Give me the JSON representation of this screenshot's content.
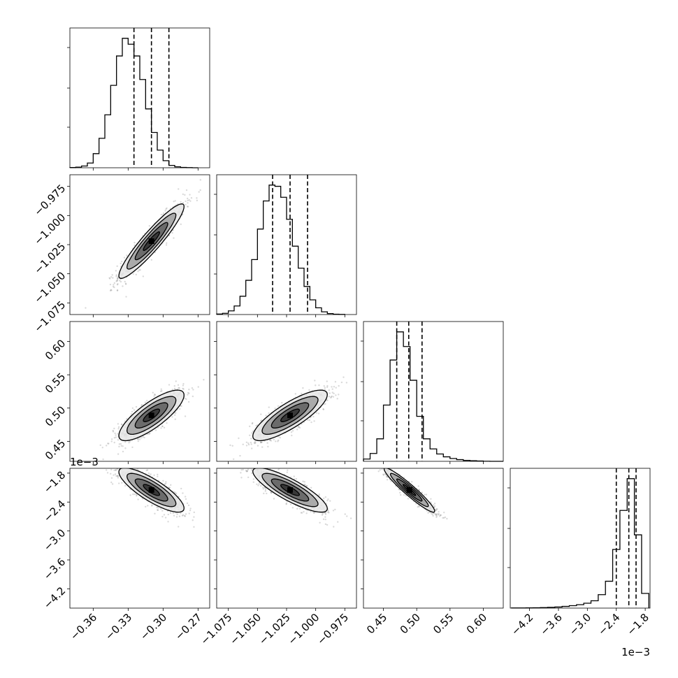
{
  "chart_data": {
    "type": "corner",
    "parameters": [
      {
        "range": [
          -0.38,
          -0.26
        ],
        "ticks": [
          -0.36,
          -0.33,
          -0.3,
          -0.27
        ],
        "tick_labels": [
          "−0.36",
          "−0.33",
          "−0.30",
          "−0.27"
        ],
        "mean": -0.31,
        "sd": 0.014,
        "quantiles": [
          -0.325,
          -0.31,
          -0.295
        ]
      },
      {
        "range": [
          -1.085,
          -0.965
        ],
        "ticks": [
          -1.075,
          -1.05,
          -1.025,
          -1.0,
          -0.975
        ],
        "tick_labels": [
          "−1.075",
          "−1.050",
          "−1.025",
          "−1.000",
          "−0.975"
        ],
        "mean": -1.022,
        "sd": 0.016,
        "quantiles": [
          -1.037,
          -1.022,
          -1.007
        ]
      },
      {
        "range": [
          0.42,
          0.63
        ],
        "ticks": [
          0.45,
          0.5,
          0.55,
          0.6
        ],
        "tick_labels": [
          "0.45",
          "0.50",
          "0.55",
          "0.60"
        ],
        "mean": 0.489,
        "sd": 0.019,
        "quantiles": [
          0.47,
          0.488,
          0.508
        ]
      },
      {
        "range": [
          -4.6,
          -1.7
        ],
        "ticks": [
          -4.2,
          -3.6,
          -3.0,
          -2.4,
          -1.8
        ],
        "tick_labels": [
          "−4.2",
          "−3.6",
          "−3.0",
          "−2.4",
          "−1.8"
        ],
        "offset_label": "1e−3",
        "mean": -2.15,
        "sd": 0.23,
        "quantiles": [
          -2.4,
          -2.14,
          -1.99
        ]
      }
    ],
    "histograms": [
      {
        "bins": [
          -0.3775,
          -0.3725,
          -0.3675,
          -0.3625,
          -0.3575,
          -0.3525,
          -0.3475,
          -0.3425,
          -0.3375,
          -0.3325,
          -0.3275,
          -0.3225,
          -0.3175,
          -0.3125,
          -0.3075,
          -0.3025,
          -0.2975,
          -0.2925,
          -0.2875,
          -0.2825,
          -0.2775,
          -0.2725
        ],
        "counts": [
          2,
          5,
          15,
          40,
          120,
          250,
          450,
          700,
          950,
          1100,
          1050,
          950,
          750,
          500,
          300,
          150,
          60,
          20,
          8,
          3,
          1,
          0
        ]
      },
      {
        "bins": [
          -1.0825,
          -1.0775,
          -1.0725,
          -1.0675,
          -1.0625,
          -1.0575,
          -1.0525,
          -1.0475,
          -1.0425,
          -1.0375,
          -1.0325,
          -1.0275,
          -1.0225,
          -1.0175,
          -1.0125,
          -1.0075,
          -1.0025,
          -0.9975,
          -0.9925,
          -0.9875,
          -0.9825,
          -0.9775
        ],
        "counts": [
          4,
          10,
          30,
          70,
          150,
          280,
          450,
          700,
          930,
          1060,
          1050,
          960,
          780,
          560,
          380,
          230,
          120,
          55,
          22,
          8,
          3,
          1
        ]
      },
      {
        "bins": [
          0.425,
          0.435,
          0.445,
          0.455,
          0.465,
          0.475,
          0.485,
          0.495,
          0.505,
          0.515,
          0.525,
          0.535,
          0.545,
          0.555,
          0.565,
          0.575,
          0.585,
          0.595,
          0.605,
          0.615,
          0.625
        ],
        "counts": [
          20,
          70,
          200,
          500,
          900,
          1150,
          1020,
          720,
          400,
          200,
          110,
          65,
          40,
          25,
          15,
          8,
          5,
          3,
          1,
          0,
          0
        ]
      },
      {
        "bins": [
          -4.5,
          -4.35,
          -4.2,
          -4.05,
          -3.9,
          -3.75,
          -3.6,
          -3.45,
          -3.3,
          -3.15,
          -3.0,
          -2.85,
          -2.7,
          -2.55,
          -2.4,
          -2.25,
          -2.1,
          -1.95,
          -1.8
        ],
        "counts": [
          1,
          1,
          2,
          3,
          4,
          6,
          9,
          14,
          20,
          28,
          40,
          60,
          110,
          220,
          480,
          800,
          1060,
          600,
          120
        ]
      }
    ],
    "pairs": [
      {
        "row": 1,
        "col": 0,
        "rho": 0.93
      },
      {
        "row": 2,
        "col": 0,
        "rho": 0.8
      },
      {
        "row": 2,
        "col": 1,
        "rho": 0.82
      },
      {
        "row": 3,
        "col": 0,
        "rho": -0.82
      },
      {
        "row": 3,
        "col": 1,
        "rho": -0.84
      },
      {
        "row": 3,
        "col": 2,
        "rho": -0.95
      }
    ],
    "contour_levels_sigma": [
      0.5,
      1.0,
      1.5,
      2.0
    ],
    "grid": true
  }
}
